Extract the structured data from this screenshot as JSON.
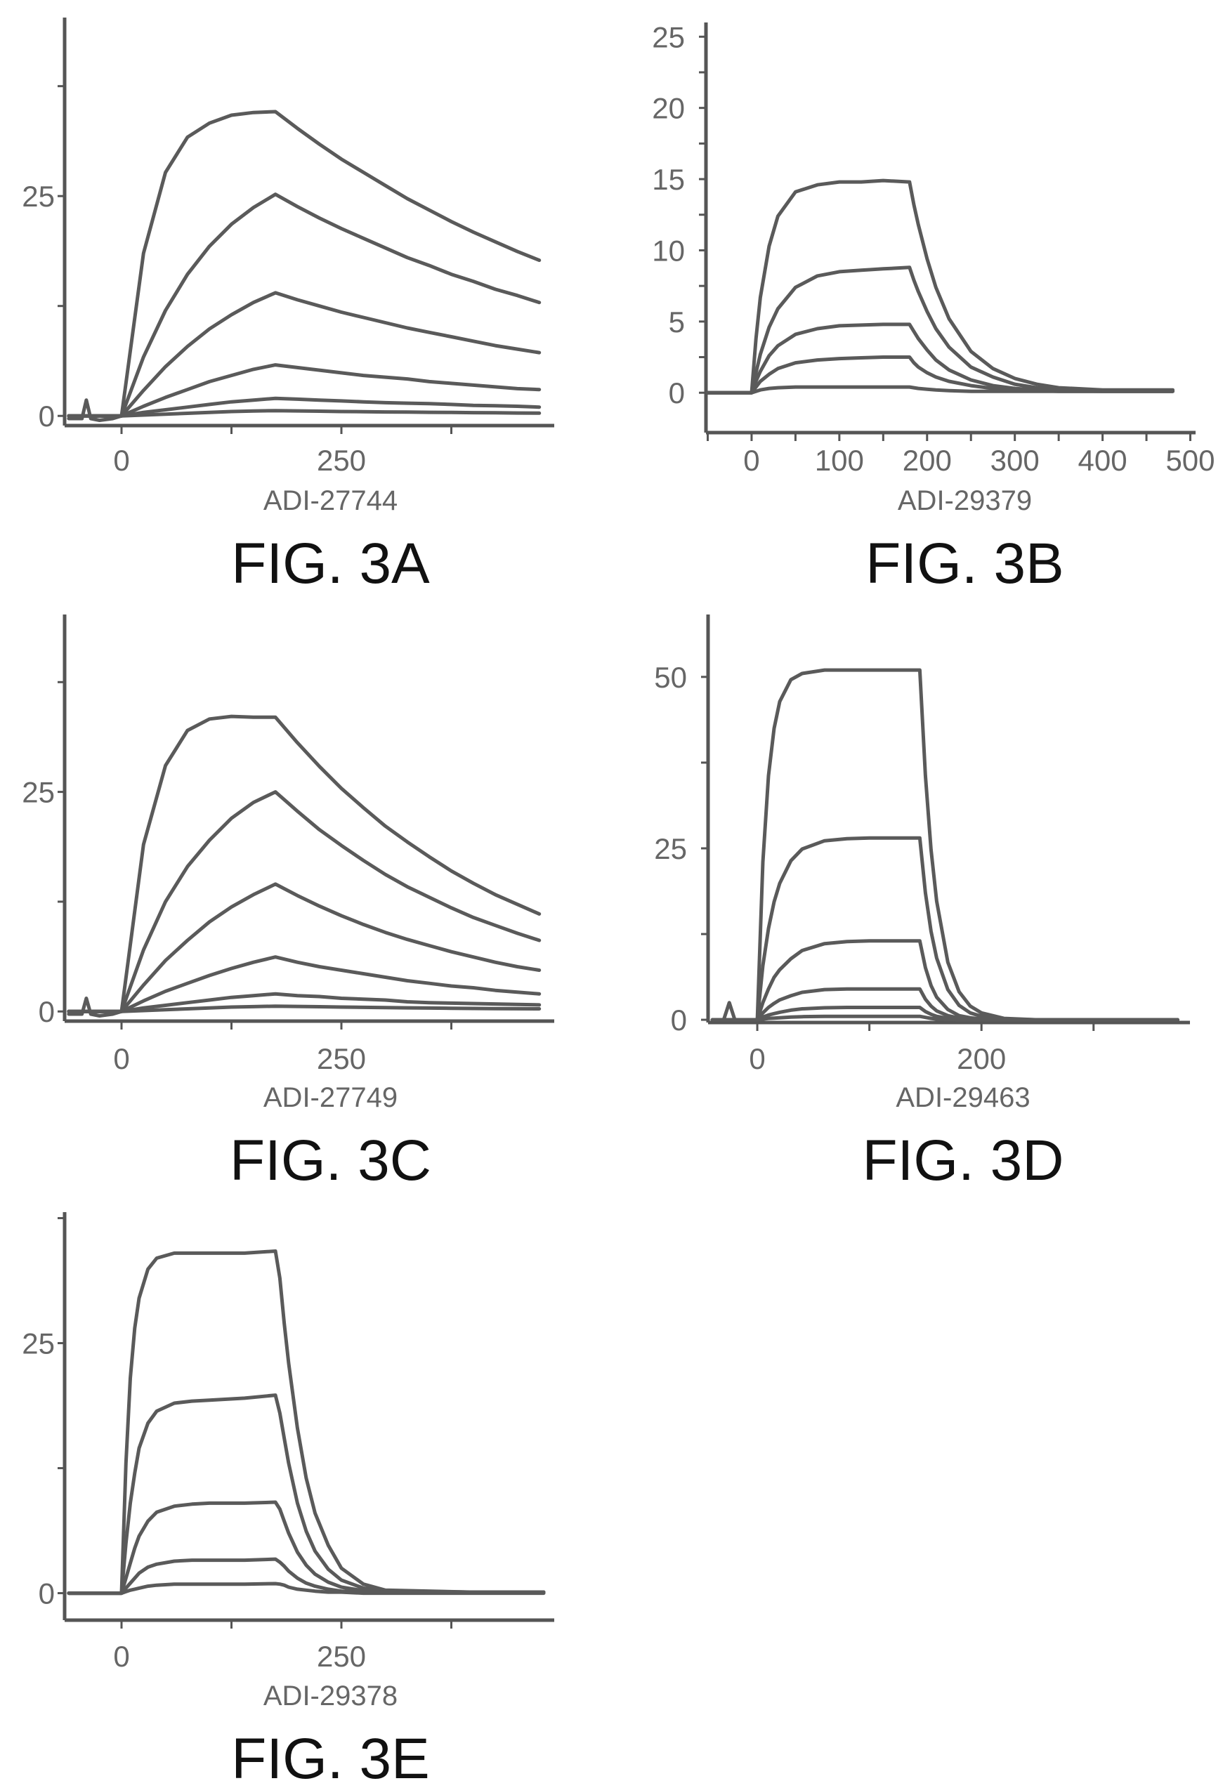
{
  "chart_data": [
    {
      "type": "line",
      "caption": "FIG. 3A",
      "xlabel": "ADI-27744",
      "ylabel": "",
      "xlim": [
        -64.7,
        492
      ],
      "ylim": [
        -1.1,
        45.3
      ],
      "xticks": [
        0,
        125,
        250,
        375
      ],
      "xticklabels": [
        {
          "value": 0,
          "label": "0"
        },
        {
          "value": 250,
          "label": "250"
        }
      ],
      "yticks": [
        0,
        12.5,
        25,
        37.5
      ],
      "yticklabels": [
        {
          "value": 0,
          "label": "0"
        },
        {
          "value": 25,
          "label": "25"
        }
      ],
      "x": [
        -60,
        -45,
        -40,
        -35,
        -25,
        -10,
        0,
        25,
        50,
        75,
        100,
        125,
        150,
        175,
        200,
        225,
        250,
        275,
        300,
        325,
        350,
        375,
        400,
        425,
        450,
        475
      ],
      "series": [
        {
          "values": [
            -0.3,
            -0.3,
            1.8,
            -0.3,
            -0.5,
            -0.3,
            0,
            18.5,
            27.7,
            31.7,
            33.3,
            34.2,
            34.5,
            34.6,
            32.7,
            30.9,
            29.2,
            27.7,
            26.2,
            24.7,
            23.4,
            22.1,
            20.9,
            19.8,
            18.7,
            17.7
          ]
        },
        {
          "values": [
            0,
            0,
            0,
            0,
            0,
            0,
            0,
            6.7,
            12.0,
            16.1,
            19.3,
            21.8,
            23.7,
            25.2,
            23.8,
            22.5,
            21.3,
            20.2,
            19.1,
            18.0,
            17.1,
            16.1,
            15.3,
            14.4,
            13.7,
            12.9
          ]
        },
        {
          "values": [
            0,
            0,
            0,
            0,
            0,
            0,
            0,
            2.9,
            5.6,
            7.9,
            9.9,
            11.5,
            12.9,
            14.0,
            13.2,
            12.5,
            11.8,
            11.2,
            10.6,
            10.0,
            9.5,
            9.0,
            8.5,
            8.0,
            7.6,
            7.2
          ]
        },
        {
          "values": [
            0,
            0,
            0,
            0,
            0,
            0,
            0,
            1.1,
            2.1,
            3.0,
            3.9,
            4.6,
            5.3,
            5.8,
            5.5,
            5.2,
            4.9,
            4.6,
            4.4,
            4.2,
            3.9,
            3.7,
            3.5,
            3.3,
            3.1,
            3.0
          ]
        },
        {
          "values": [
            0,
            0,
            0,
            0,
            0,
            0,
            0,
            0.4,
            0.7,
            1.0,
            1.3,
            1.6,
            1.8,
            2.0,
            1.9,
            1.8,
            1.7,
            1.6,
            1.5,
            1.45,
            1.4,
            1.3,
            1.2,
            1.15,
            1.1,
            1.0
          ]
        },
        {
          "values": [
            0,
            0,
            0,
            0,
            0,
            0,
            0,
            0.1,
            0.2,
            0.3,
            0.4,
            0.5,
            0.55,
            0.6,
            0.57,
            0.54,
            0.5,
            0.48,
            0.45,
            0.43,
            0.41,
            0.39,
            0.37,
            0.35,
            0.33,
            0.31
          ]
        }
      ]
    },
    {
      "type": "line",
      "caption": "FIG. 3B",
      "xlabel": "ADI-29379",
      "ylabel": "",
      "xlim": [
        -52,
        506
      ],
      "ylim": [
        -2.8,
        26.0
      ],
      "xticks": [
        -50,
        0,
        50,
        100,
        150,
        200,
        250,
        300,
        350,
        400,
        450,
        500
      ],
      "xticklabels": [
        {
          "value": 0,
          "label": "0"
        },
        {
          "value": 100,
          "label": "100"
        },
        {
          "value": 200,
          "label": "200"
        },
        {
          "value": 300,
          "label": "300"
        },
        {
          "value": 400,
          "label": "400"
        },
        {
          "value": 500,
          "label": "500"
        }
      ],
      "yticks": [
        0,
        2.5,
        5,
        7.5,
        10,
        12.5,
        15,
        17.5,
        20,
        22.5,
        25
      ],
      "yticklabels": [
        {
          "value": 0,
          "label": "0"
        },
        {
          "value": 5,
          "label": "5"
        },
        {
          "value": 10,
          "label": "10"
        },
        {
          "value": 15,
          "label": "15"
        },
        {
          "value": 20,
          "label": "20"
        },
        {
          "value": 25,
          "label": "25"
        }
      ],
      "x": [
        -50,
        0,
        5,
        10,
        20,
        30,
        50,
        75,
        100,
        125,
        150,
        180,
        185,
        190,
        200,
        210,
        225,
        250,
        275,
        300,
        325,
        350,
        400,
        480
      ],
      "series": [
        {
          "values": [
            0,
            0,
            3.8,
            6.7,
            10.3,
            12.4,
            14.1,
            14.6,
            14.8,
            14.8,
            14.9,
            14.8,
            13.2,
            11.8,
            9.4,
            7.4,
            5.2,
            2.9,
            1.7,
            1.0,
            0.6,
            0.35,
            0.2,
            0.2
          ]
        },
        {
          "values": [
            0,
            0,
            1.4,
            2.7,
            4.6,
            5.9,
            7.4,
            8.2,
            8.5,
            8.6,
            8.7,
            8.8,
            7.9,
            7.1,
            5.7,
            4.5,
            3.2,
            1.8,
            1.1,
            0.6,
            0.35,
            0.2,
            0.15,
            0.15
          ]
        },
        {
          "values": [
            0,
            0,
            0.8,
            1.5,
            2.6,
            3.3,
            4.1,
            4.5,
            4.7,
            4.75,
            4.8,
            4.8,
            4.3,
            3.8,
            3.0,
            2.3,
            1.6,
            0.9,
            0.5,
            0.3,
            0.2,
            0.15,
            0.1,
            0.1
          ]
        },
        {
          "values": [
            0,
            0,
            0.4,
            0.8,
            1.3,
            1.7,
            2.1,
            2.3,
            2.4,
            2.45,
            2.5,
            2.5,
            2.1,
            1.8,
            1.4,
            1.1,
            0.8,
            0.5,
            0.3,
            0.2,
            0.15,
            0.1,
            0.1,
            0.1
          ]
        },
        {
          "values": [
            0,
            0,
            0.1,
            0.2,
            0.3,
            0.35,
            0.4,
            0.4,
            0.4,
            0.4,
            0.4,
            0.4,
            0.35,
            0.3,
            0.25,
            0.2,
            0.15,
            0.1,
            0.1,
            0.1,
            0.1,
            0.1,
            0.1,
            0.1
          ]
        }
      ]
    },
    {
      "type": "line",
      "caption": "FIG. 3C",
      "xlabel": "ADI-27749",
      "ylabel": "",
      "xlim": [
        -64.7,
        492
      ],
      "ylim": [
        -1.1,
        45.2
      ],
      "xticks": [
        0,
        125,
        250,
        375
      ],
      "xticklabels": [
        {
          "value": 0,
          "label": "0"
        },
        {
          "value": 250,
          "label": "250"
        }
      ],
      "yticks": [
        0,
        12.5,
        25,
        37.5
      ],
      "yticklabels": [
        {
          "value": 0,
          "label": "0"
        },
        {
          "value": 25,
          "label": "25"
        }
      ],
      "x": [
        -60,
        -45,
        -40,
        -35,
        -25,
        -10,
        0,
        25,
        50,
        75,
        100,
        125,
        150,
        175,
        200,
        225,
        250,
        275,
        300,
        325,
        350,
        375,
        400,
        425,
        450,
        475
      ],
      "series": [
        {
          "values": [
            -0.3,
            -0.3,
            1.5,
            -0.3,
            -0.5,
            -0.3,
            0,
            19,
            28,
            32,
            33.3,
            33.6,
            33.5,
            33.5,
            30.6,
            27.9,
            25.4,
            23.2,
            21.1,
            19.3,
            17.6,
            16.0,
            14.6,
            13.3,
            12.2,
            11.1
          ]
        },
        {
          "values": [
            0,
            0,
            0,
            0,
            0,
            0,
            0,
            7,
            12.5,
            16.5,
            19.5,
            22,
            23.8,
            25,
            22.8,
            20.7,
            18.9,
            17.2,
            15.6,
            14.2,
            13.0,
            11.8,
            10.7,
            9.8,
            8.9,
            8.1
          ]
        },
        {
          "values": [
            0,
            0,
            0,
            0,
            0,
            0,
            0,
            3,
            5.8,
            8.1,
            10.2,
            11.9,
            13.3,
            14.5,
            13.2,
            12.0,
            10.9,
            9.9,
            9.0,
            8.2,
            7.5,
            6.8,
            6.2,
            5.6,
            5.1,
            4.7
          ]
        },
        {
          "values": [
            0,
            0,
            0,
            0,
            0,
            0,
            0,
            1.2,
            2.3,
            3.2,
            4.1,
            4.9,
            5.6,
            6.2,
            5.6,
            5.1,
            4.7,
            4.3,
            3.9,
            3.5,
            3.2,
            2.9,
            2.7,
            2.4,
            2.2,
            2.0
          ]
        },
        {
          "values": [
            0,
            0,
            0,
            0,
            0,
            0,
            0,
            0.4,
            0.7,
            1.0,
            1.3,
            1.6,
            1.8,
            2.0,
            1.8,
            1.7,
            1.5,
            1.4,
            1.3,
            1.1,
            1.0,
            0.95,
            0.9,
            0.85,
            0.8,
            0.75
          ]
        },
        {
          "values": [
            0,
            0,
            0,
            0,
            0,
            0,
            0,
            0.1,
            0.2,
            0.3,
            0.4,
            0.5,
            0.55,
            0.6,
            0.57,
            0.54,
            0.5,
            0.47,
            0.44,
            0.41,
            0.39,
            0.36,
            0.34,
            0.32,
            0.31,
            0.3
          ]
        }
      ]
    },
    {
      "type": "line",
      "caption": "FIG. 3D",
      "xlabel": "ADI-29463",
      "ylabel": "",
      "xlim": [
        -43.9,
        386
      ],
      "ylim": [
        -0.4,
        59.1
      ],
      "xticks": [
        0,
        100,
        200,
        300
      ],
      "xticklabels": [
        {
          "value": 0,
          "label": "0"
        },
        {
          "value": 200,
          "label": "200"
        }
      ],
      "yticks": [
        0,
        12.5,
        25,
        37.5,
        50
      ],
      "yticklabels": [
        {
          "value": 0,
          "label": "0"
        },
        {
          "value": 25,
          "label": "25"
        },
        {
          "value": 50,
          "label": "50"
        }
      ],
      "x": [
        -40,
        -30,
        -25,
        -20,
        0,
        5,
        10,
        15,
        20,
        30,
        40,
        60,
        80,
        100,
        120,
        145,
        150,
        155,
        160,
        170,
        180,
        190,
        200,
        220,
        250,
        300,
        375
      ],
      "series": [
        {
          "values": [
            0,
            0,
            2.5,
            0,
            0,
            23,
            35.6,
            42.5,
            46.4,
            49.6,
            50.5,
            51,
            51,
            51,
            51,
            51,
            35.6,
            24.8,
            17.3,
            8.4,
            4.1,
            2.0,
            1.0,
            0.2,
            0,
            0,
            0
          ]
        },
        {
          "values": [
            0,
            0,
            0,
            0,
            0,
            7.9,
            13.3,
            17.2,
            19.9,
            23.2,
            24.9,
            26.1,
            26.4,
            26.5,
            26.5,
            26.5,
            18.5,
            12.9,
            9.0,
            4.4,
            2.1,
            1.0,
            0.5,
            0.1,
            0,
            0,
            0
          ]
        },
        {
          "values": [
            0,
            0,
            0,
            0,
            0,
            2.5,
            4.5,
            6.2,
            7.3,
            8.9,
            10.1,
            11.1,
            11.4,
            11.5,
            11.5,
            11.5,
            7.6,
            5.0,
            3.3,
            1.5,
            0.6,
            0.3,
            0.1,
            0,
            0,
            0,
            0
          ]
        },
        {
          "values": [
            0,
            0,
            0,
            0,
            0,
            1.0,
            1.8,
            2.4,
            2.9,
            3.5,
            4.0,
            4.4,
            4.5,
            4.5,
            4.5,
            4.5,
            3.0,
            2.0,
            1.3,
            0.6,
            0.25,
            0.1,
            0,
            0,
            0,
            0,
            0
          ]
        },
        {
          "values": [
            0,
            0,
            0,
            0,
            0,
            0.4,
            0.7,
            0.9,
            1.1,
            1.4,
            1.6,
            1.75,
            1.8,
            1.8,
            1.8,
            1.8,
            1.2,
            0.8,
            0.5,
            0.2,
            0.1,
            0,
            0,
            0,
            0,
            0,
            0
          ]
        },
        {
          "values": [
            0,
            0,
            0,
            0,
            0,
            0.1,
            0.2,
            0.25,
            0.3,
            0.4,
            0.45,
            0.5,
            0.5,
            0.5,
            0.5,
            0.5,
            0.35,
            0.2,
            0.1,
            0.05,
            0,
            0,
            0,
            0,
            0,
            0,
            0
          ]
        }
      ]
    },
    {
      "type": "line",
      "caption": "FIG. 3E",
      "xlabel": "ADI-29378",
      "ylabel": "",
      "xlim": [
        -64.7,
        492
      ],
      "ylim": [
        -2.7,
        38.1
      ],
      "xticks": [
        0,
        125,
        250,
        375
      ],
      "xticklabels": [
        {
          "value": 0,
          "label": "0"
        },
        {
          "value": 250,
          "label": "250"
        }
      ],
      "yticks": [
        0,
        12.5,
        25,
        37.5
      ],
      "yticklabels": [
        {
          "value": 0,
          "label": "0"
        },
        {
          "value": 25,
          "label": "25"
        }
      ],
      "x": [
        -60,
        0,
        5,
        10,
        15,
        20,
        30,
        40,
        60,
        80,
        100,
        140,
        175,
        180,
        185,
        190,
        200,
        210,
        220,
        235,
        250,
        275,
        300,
        400,
        480
      ],
      "series": [
        {
          "values": [
            0,
            0,
            13,
            21.5,
            26.5,
            29.5,
            32.4,
            33.5,
            34,
            34,
            34,
            34,
            34.2,
            31.5,
            27,
            23,
            16.5,
            11.5,
            8,
            4.8,
            2.5,
            0.9,
            0.3,
            0.1,
            0.1
          ]
        },
        {
          "values": [
            0,
            0,
            5,
            9,
            12,
            14.5,
            17,
            18.2,
            19,
            19.2,
            19.3,
            19.5,
            19.8,
            18,
            15.5,
            13,
            9,
            6.2,
            4.2,
            2.4,
            1.3,
            0.5,
            0.2,
            0.1,
            0.1
          ]
        },
        {
          "values": [
            0,
            0,
            1.5,
            3,
            4.5,
            5.7,
            7.2,
            8.1,
            8.7,
            8.9,
            9,
            9,
            9.1,
            8.4,
            7.2,
            6,
            4.1,
            2.8,
            1.9,
            1.1,
            0.6,
            0.25,
            0.1,
            0.1,
            0.1
          ]
        },
        {
          "values": [
            0,
            0,
            0.5,
            1,
            1.5,
            2,
            2.6,
            2.9,
            3.2,
            3.3,
            3.3,
            3.3,
            3.4,
            3.1,
            2.7,
            2.2,
            1.5,
            1,
            0.7,
            0.4,
            0.2,
            0.1,
            0.1,
            0.1,
            0.1
          ]
        },
        {
          "values": [
            0,
            0,
            0.15,
            0.3,
            0.4,
            0.5,
            0.7,
            0.8,
            0.9,
            0.9,
            0.9,
            0.9,
            0.95,
            0.9,
            0.8,
            0.6,
            0.4,
            0.3,
            0.2,
            0.1,
            0.1,
            0,
            0,
            0,
            0
          ]
        }
      ]
    }
  ],
  "colors": {
    "curve": "#5a5a5a",
    "axis": "#555555",
    "text": "#666666",
    "caption": "#111111"
  }
}
